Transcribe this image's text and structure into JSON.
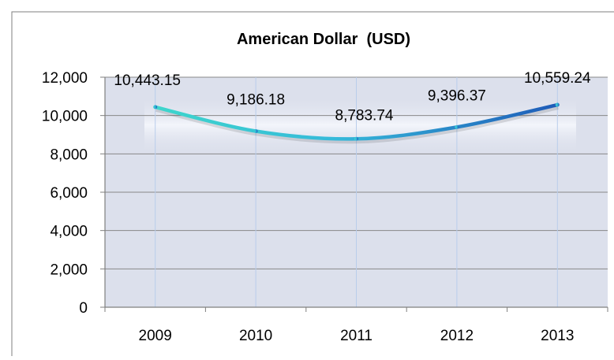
{
  "chart_data": {
    "type": "line",
    "title": "American Dollar  (USD)",
    "xlabel": "",
    "ylabel": "",
    "categories": [
      "2009",
      "2010",
      "2011",
      "2012",
      "2013"
    ],
    "series": [
      {
        "values": [
          10443.15,
          9186.18,
          8783.74,
          9396.37,
          10559.24
        ],
        "labels": [
          "10,443.15",
          "9,186.18",
          "8,783.74",
          "9,396.37",
          "10,559.24"
        ]
      }
    ],
    "ylim": [
      0,
      12000
    ],
    "yticks": [
      0,
      2000,
      4000,
      6000,
      8000,
      10000,
      12000
    ],
    "ytick_labels": [
      "0",
      "2,000",
      "4,000",
      "6,000",
      "8,000",
      "10,000",
      "12,000"
    ],
    "grid": true,
    "legend": "none",
    "colors": {
      "line_start": "#3ED6CC",
      "line_end": "#1E5BB8",
      "plot_background": "#DCE0EC",
      "plot_glow": "#EEF1FA",
      "gridline": "#888888",
      "vertical_gridline": "#B9CDEB",
      "frame": "#7F7F7F"
    }
  }
}
